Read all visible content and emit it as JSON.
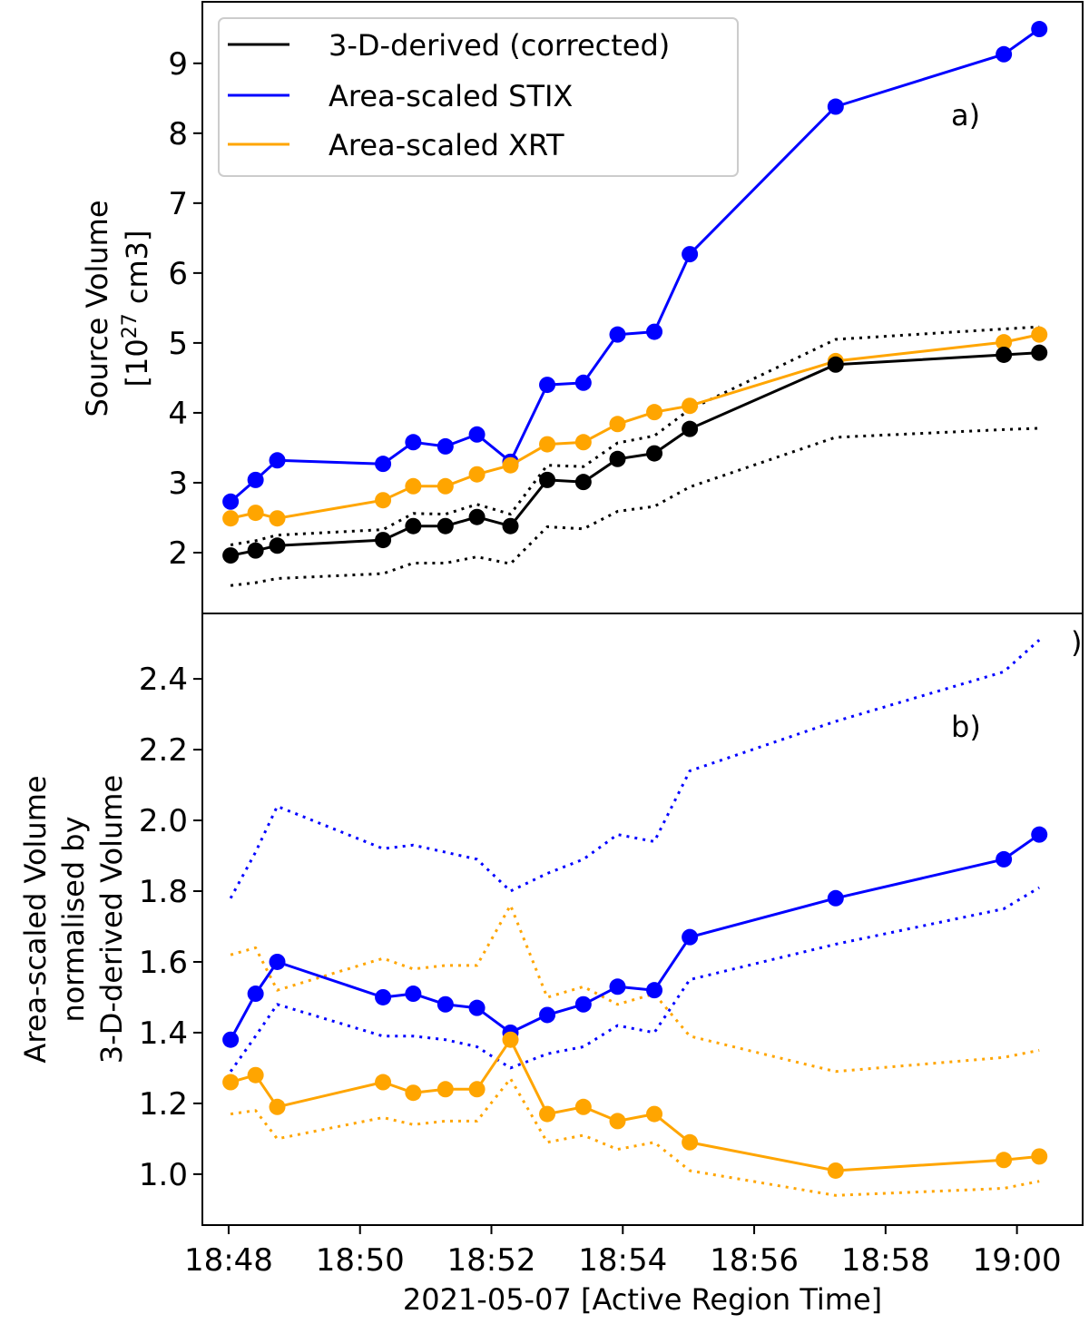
{
  "chart_data": [
    {
      "type": "line",
      "panel": "a)",
      "ylabel_line1": "Source Volume",
      "ylabel_line2_prefix": "[10",
      "ylabel_line2_exp": "27",
      "ylabel_line2_suffix": " cm3]",
      "xlabel": "",
      "x_unit": "minutes after 18:48",
      "xlim": [
        -0.4,
        13.0
      ],
      "ylim": [
        1.13,
        9.88
      ],
      "yticks": [
        2,
        3,
        4,
        5,
        6,
        7,
        8,
        9
      ],
      "ytick_labels": [
        "2",
        "3",
        "4",
        "5",
        "6",
        "7",
        "8",
        "9"
      ],
      "legend": {
        "placement": "top-left",
        "entries": [
          {
            "label": "3-D-derived (corrected)",
            "color": "#000000"
          },
          {
            "label": "Area-scaled STIX",
            "color": "#0000ff"
          },
          {
            "label": "Area-scaled XRT",
            "color": "#ffa500"
          }
        ]
      },
      "x": [
        0.03,
        0.41,
        0.74,
        2.35,
        2.81,
        3.3,
        3.78,
        4.29,
        4.85,
        5.4,
        5.92,
        6.48,
        7.02,
        9.24,
        11.8,
        12.34
      ],
      "series": [
        {
          "name": "Area-scaled STIX",
          "color": "#0000ff",
          "style": "solid",
          "markers": true,
          "values": [
            2.73,
            3.04,
            3.32,
            3.27,
            3.58,
            3.52,
            3.69,
            3.3,
            4.4,
            4.43,
            5.12,
            5.16,
            6.27,
            8.38,
            9.13,
            9.49
          ]
        },
        {
          "name": "Area-scaled XRT",
          "color": "#ffa500",
          "style": "solid",
          "markers": true,
          "values": [
            2.49,
            2.57,
            2.49,
            2.75,
            2.95,
            2.95,
            3.12,
            3.25,
            3.55,
            3.58,
            3.84,
            4.01,
            4.1,
            4.74,
            5.01,
            5.12
          ]
        },
        {
          "name": "3-D-derived (corrected)",
          "color": "#000000",
          "style": "solid",
          "markers": true,
          "values": [
            1.96,
            2.03,
            2.1,
            2.18,
            2.38,
            2.38,
            2.51,
            2.38,
            3.04,
            3.01,
            3.34,
            3.42,
            3.77,
            4.69,
            4.83,
            4.86
          ]
        },
        {
          "name": "3-D-derived upper bound",
          "color": "#000000",
          "style": "dotted",
          "markers": false,
          "values": [
            2.11,
            2.17,
            2.25,
            2.33,
            2.56,
            2.55,
            2.69,
            2.55,
            3.25,
            3.23,
            3.57,
            3.67,
            4.05,
            5.05,
            5.2,
            5.23
          ]
        },
        {
          "name": "3-D-derived lower bound",
          "color": "#000000",
          "style": "dotted",
          "markers": false,
          "values": [
            1.53,
            1.57,
            1.63,
            1.7,
            1.85,
            1.85,
            1.94,
            1.84,
            2.37,
            2.34,
            2.59,
            2.66,
            2.94,
            3.65,
            3.76,
            3.78
          ]
        }
      ]
    },
    {
      "type": "line",
      "panel": "b)",
      "ylabel_lines": [
        "Area-scaled Volume",
        "normalised by",
        "3-D-derived Volume"
      ],
      "xlabel": "2021-05-07 [Active Region Time]",
      "x_unit": "minutes after 18:48",
      "xlim": [
        -0.4,
        13.0
      ],
      "ylim": [
        0.856,
        2.585
      ],
      "xticks": [
        0,
        2,
        4,
        6,
        8,
        10,
        12
      ],
      "xtick_labels": [
        "18:48",
        "18:50",
        "18:52",
        "18:54",
        "18:56",
        "18:58",
        "19:00"
      ],
      "yticks": [
        1.0,
        1.2,
        1.4,
        1.6,
        1.8,
        2.0,
        2.2,
        2.4
      ],
      "ytick_labels": [
        "1.0",
        "1.2",
        "1.4",
        "1.6",
        "1.8",
        "2.0",
        "2.2",
        "2.4"
      ],
      "x": [
        0.03,
        0.41,
        0.74,
        2.35,
        2.81,
        3.3,
        3.78,
        4.29,
        4.85,
        5.4,
        5.92,
        6.48,
        7.02,
        9.24,
        11.8,
        12.34
      ],
      "series": [
        {
          "name": "STIX ratio",
          "color": "#0000ff",
          "style": "solid",
          "markers": true,
          "values": [
            1.38,
            1.51,
            1.6,
            1.5,
            1.51,
            1.48,
            1.47,
            1.4,
            1.45,
            1.48,
            1.53,
            1.52,
            1.67,
            1.78,
            1.89,
            1.96
          ]
        },
        {
          "name": "STIX ratio upper bound",
          "color": "#0000ff",
          "style": "dotted",
          "markers": false,
          "values": [
            1.78,
            1.91,
            2.04,
            1.92,
            1.93,
            1.91,
            1.89,
            1.8,
            1.85,
            1.89,
            1.96,
            1.94,
            2.14,
            2.28,
            2.42,
            2.51
          ]
        },
        {
          "name": "STIX ratio lower bound",
          "color": "#0000ff",
          "style": "dotted",
          "markers": false,
          "values": [
            1.29,
            1.39,
            1.48,
            1.39,
            1.39,
            1.38,
            1.36,
            1.3,
            1.34,
            1.36,
            1.42,
            1.4,
            1.55,
            1.65,
            1.75,
            1.81
          ]
        },
        {
          "name": "XRT ratio",
          "color": "#ffa500",
          "style": "solid",
          "markers": true,
          "values": [
            1.26,
            1.28,
            1.19,
            1.26,
            1.23,
            1.24,
            1.24,
            1.38,
            1.17,
            1.19,
            1.15,
            1.17,
            1.09,
            1.01,
            1.04,
            1.05
          ]
        },
        {
          "name": "XRT ratio upper bound",
          "color": "#ffa500",
          "style": "dotted",
          "markers": false,
          "values": [
            1.62,
            1.64,
            1.52,
            1.61,
            1.58,
            1.59,
            1.59,
            1.76,
            1.5,
            1.53,
            1.48,
            1.51,
            1.39,
            1.29,
            1.33,
            1.35
          ]
        },
        {
          "name": "XRT ratio lower bound",
          "color": "#ffa500",
          "style": "dotted",
          "markers": false,
          "values": [
            1.17,
            1.18,
            1.1,
            1.16,
            1.14,
            1.15,
            1.15,
            1.27,
            1.09,
            1.11,
            1.07,
            1.09,
            1.01,
            0.94,
            0.96,
            0.98
          ]
        }
      ]
    }
  ],
  "stray_label": ")"
}
